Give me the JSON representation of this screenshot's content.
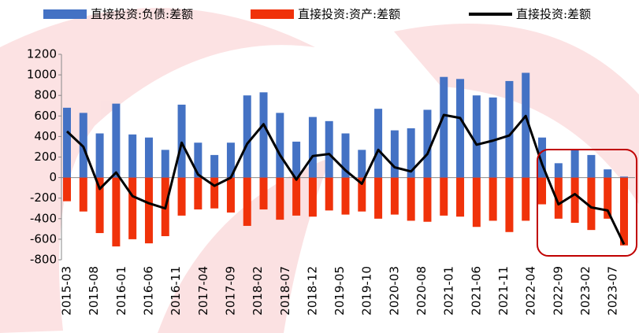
{
  "chart_data": {
    "type": "bar",
    "x": [
      "2015-03",
      "2015-06",
      "2015-09",
      "2015-12",
      "2016-03",
      "2016-06",
      "2016-09",
      "2016-12",
      "2017-03",
      "2017-06",
      "2017-09",
      "2017-12",
      "2018-03",
      "2018-06",
      "2018-09",
      "2018-12",
      "2019-03",
      "2019-06",
      "2019-09",
      "2019-12",
      "2020-03",
      "2020-06",
      "2020-09",
      "2020-12",
      "2021-03",
      "2021-06",
      "2021-09",
      "2021-12",
      "2022-03",
      "2022-06",
      "2022-09",
      "2022-12",
      "2023-03",
      "2023-06",
      "2023-09"
    ],
    "xticks": [
      "2015-03",
      "2015-08",
      "2016-01",
      "2016-06",
      "2016-11",
      "2017-04",
      "2017-09",
      "2018-02",
      "2018-07",
      "2018-12",
      "2019-05",
      "2019-10",
      "2020-03",
      "2020-08",
      "2021-01",
      "2021-06",
      "2021-11",
      "2022-04",
      "2022-09",
      "2023-02",
      "2023-07"
    ],
    "series": [
      {
        "name": "直接投资:负债:差额",
        "color": "#4472c4",
        "type": "bar",
        "values": [
          680,
          630,
          430,
          720,
          420,
          390,
          270,
          710,
          340,
          220,
          340,
          800,
          830,
          630,
          350,
          590,
          550,
          430,
          270,
          670,
          460,
          480,
          660,
          980,
          960,
          800,
          780,
          940,
          1020,
          390,
          140,
          280,
          220,
          80,
          10
        ]
      },
      {
        "name": "直接投资:资产:差额",
        "color": "#f0320a",
        "type": "bar",
        "values": [
          -230,
          -330,
          -540,
          -670,
          -600,
          -640,
          -570,
          -370,
          -310,
          -300,
          -340,
          -470,
          -310,
          -410,
          -370,
          -380,
          -320,
          -360,
          -330,
          -400,
          -360,
          -420,
          -430,
          -370,
          -380,
          -480,
          -420,
          -530,
          -420,
          -260,
          -400,
          -440,
          -510,
          -400,
          -660
        ]
      },
      {
        "name": "直接投资:差额",
        "color": "#000000",
        "type": "line",
        "values": [
          450,
          300,
          -110,
          50,
          -180,
          -250,
          -300,
          340,
          30,
          -80,
          0,
          330,
          520,
          220,
          -20,
          210,
          230,
          70,
          -60,
          270,
          100,
          60,
          230,
          610,
          580,
          320,
          360,
          410,
          600,
          130,
          -260,
          -160,
          -290,
          -320,
          -650
        ]
      }
    ],
    "ylim": [
      -800,
      1200
    ],
    "yticks": [
      -800,
      -600,
      -400,
      -200,
      0,
      200,
      400,
      600,
      800,
      1000,
      1200
    ]
  }
}
